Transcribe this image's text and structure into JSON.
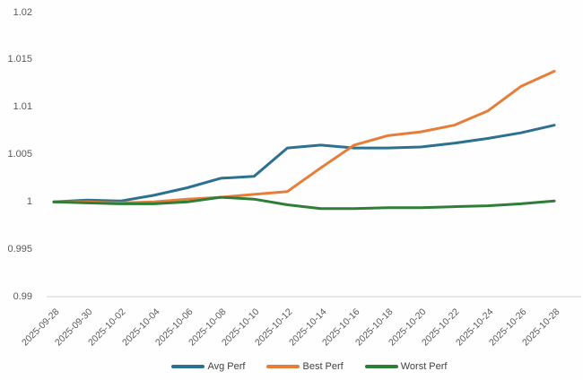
{
  "chart_data": {
    "type": "line",
    "title": "",
    "xlabel": "",
    "ylabel": "",
    "x": [
      "2025-09-28",
      "2025-09-30",
      "2025-10-02",
      "2025-10-04",
      "2025-10-06",
      "2025-10-08",
      "2025-10-10",
      "2025-10-12",
      "2025-10-14",
      "2025-10-16",
      "2025-10-18",
      "2025-10-20",
      "2025-10-22",
      "2025-10-24",
      "2025-10-26",
      "2025-10-28"
    ],
    "series": [
      {
        "name": "Avg Perf",
        "color": "#2d7191",
        "values": [
          1.0,
          1.0002,
          1.0001,
          1.0007,
          1.0015,
          1.0025,
          1.0027,
          1.0057,
          1.006,
          1.0057,
          1.0057,
          1.0058,
          1.0062,
          1.0067,
          1.0073,
          1.0081
        ]
      },
      {
        "name": "Best Perf",
        "color": "#e67e39",
        "values": [
          1.0,
          1.0,
          0.9999,
          1.0,
          1.0003,
          1.0005,
          1.0008,
          1.0011,
          1.0036,
          1.006,
          1.007,
          1.0074,
          1.0081,
          1.0096,
          1.0122,
          1.0138
        ]
      },
      {
        "name": "Worst Perf",
        "color": "#2e7d38",
        "values": [
          1.0,
          0.9999,
          0.9998,
          0.9998,
          1.0,
          1.0005,
          1.0003,
          0.9997,
          0.9993,
          0.9993,
          0.9994,
          0.9994,
          0.9995,
          0.9996,
          0.9998,
          1.0001
        ]
      }
    ],
    "ylim": [
      0.99,
      1.02
    ],
    "yticks": [
      {
        "value": 0.99,
        "label": "0.99"
      },
      {
        "value": 0.995,
        "label": "0.995"
      },
      {
        "value": 1.0,
        "label": "1"
      },
      {
        "value": 1.005,
        "label": "1.005"
      },
      {
        "value": 1.01,
        "label": "1.01"
      },
      {
        "value": 1.015,
        "label": "1.015"
      },
      {
        "value": 1.02,
        "label": "1.02"
      }
    ],
    "grid": false,
    "legend_position": "bottom",
    "axis_line_color": "#d9d9d9",
    "tick_label_color": "#595959"
  }
}
